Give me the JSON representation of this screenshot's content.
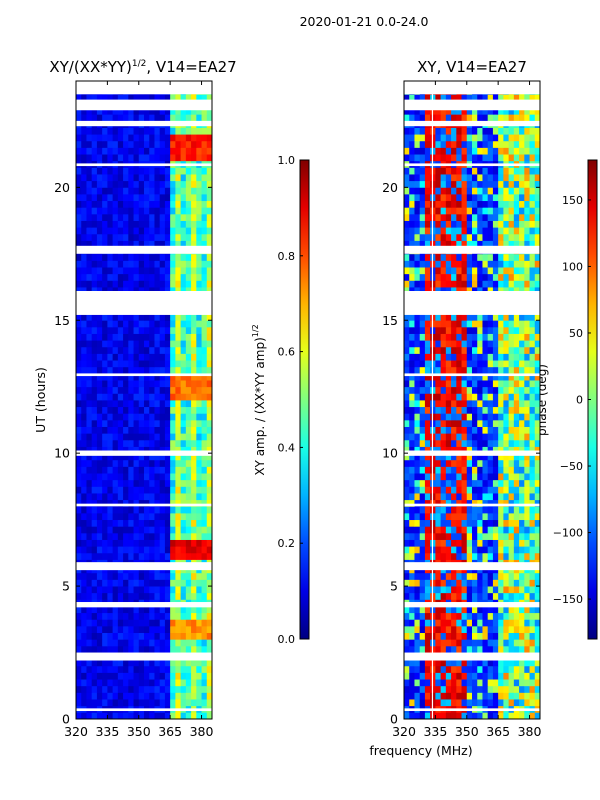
{
  "figure": {
    "suptitle": "2020-01-21 0.0-24.0",
    "xlabel_shared": "frequency (MHz)"
  },
  "colormap": "jet",
  "chart_data": [
    {
      "type": "heatmap",
      "title_prefix": "XY/(XX*YY)",
      "title_exponent": "1/2",
      "title_suffix": ", V14=EA27",
      "ylabel": "UT (hours)",
      "xlim": [
        320,
        385
      ],
      "ylim": [
        0,
        24
      ],
      "xticks": [
        320,
        335,
        350,
        365,
        380
      ],
      "yticks": [
        0,
        5,
        10,
        15,
        20
      ],
      "quantity": "amplitude ratio",
      "active_band_mhz": [
        364,
        383
      ],
      "hot_spots": [
        {
          "t0": 5.9,
          "t1": 6.6,
          "value": 0.85
        },
        {
          "t0": 20.8,
          "t1": 21.8,
          "value": 0.8
        },
        {
          "t0": 12.0,
          "t1": 13.0,
          "value": 0.72
        },
        {
          "t0": 3.0,
          "t1": 3.6,
          "value": 0.68
        }
      ],
      "flagged_bands_hours": [
        [
          0.3,
          0.4
        ],
        [
          2.2,
          2.5
        ],
        [
          4.2,
          4.4
        ],
        [
          5.6,
          5.9
        ],
        [
          8.0,
          8.1
        ],
        [
          9.9,
          10.1
        ],
        [
          12.9,
          13.0
        ],
        [
          15.2,
          16.1
        ],
        [
          17.5,
          17.8
        ],
        [
          20.8,
          20.9
        ],
        [
          22.3,
          22.5
        ],
        [
          22.9,
          23.3
        ],
        [
          23.5,
          24.0
        ]
      ],
      "colorbar": {
        "label_prefix": "XY amp. / (XX*YY amp)",
        "label_exponent": "1/2",
        "range": [
          0.0,
          1.0
        ],
        "ticks": [
          0.0,
          0.2,
          0.4,
          0.6,
          0.8,
          1.0
        ],
        "tick_labels": [
          "0.0",
          "0.2",
          "0.4",
          "0.6",
          "0.8",
          "1.0"
        ]
      }
    },
    {
      "type": "heatmap",
      "title": "XY, V14=EA27",
      "xlim": [
        320,
        385
      ],
      "ylim": [
        0,
        24
      ],
      "xticks": [
        320,
        335,
        350,
        365,
        380
      ],
      "yticks": [
        0,
        5,
        10,
        15,
        20
      ],
      "quantity": "phase (deg)",
      "phase_band_mhz": [
        330,
        348
      ],
      "stripe_freq_mhz": 333.6,
      "active_band_mhz": [
        364,
        383
      ],
      "flagged_bands_hours": [
        [
          0.3,
          0.4
        ],
        [
          2.2,
          2.5
        ],
        [
          4.2,
          4.4
        ],
        [
          5.6,
          5.9
        ],
        [
          8.0,
          8.1
        ],
        [
          9.9,
          10.1
        ],
        [
          12.9,
          13.0
        ],
        [
          15.2,
          16.1
        ],
        [
          17.5,
          17.8
        ],
        [
          20.8,
          20.9
        ],
        [
          22.3,
          22.5
        ],
        [
          22.9,
          23.3
        ],
        [
          23.5,
          24.0
        ]
      ],
      "colorbar": {
        "label": "phase (deg)",
        "range": [
          -180,
          180
        ],
        "ticks": [
          -150,
          -100,
          -50,
          0,
          50,
          100,
          150
        ],
        "tick_labels": [
          "−150",
          "−100",
          "−50",
          "0",
          "50",
          "100",
          "150"
        ]
      }
    }
  ]
}
